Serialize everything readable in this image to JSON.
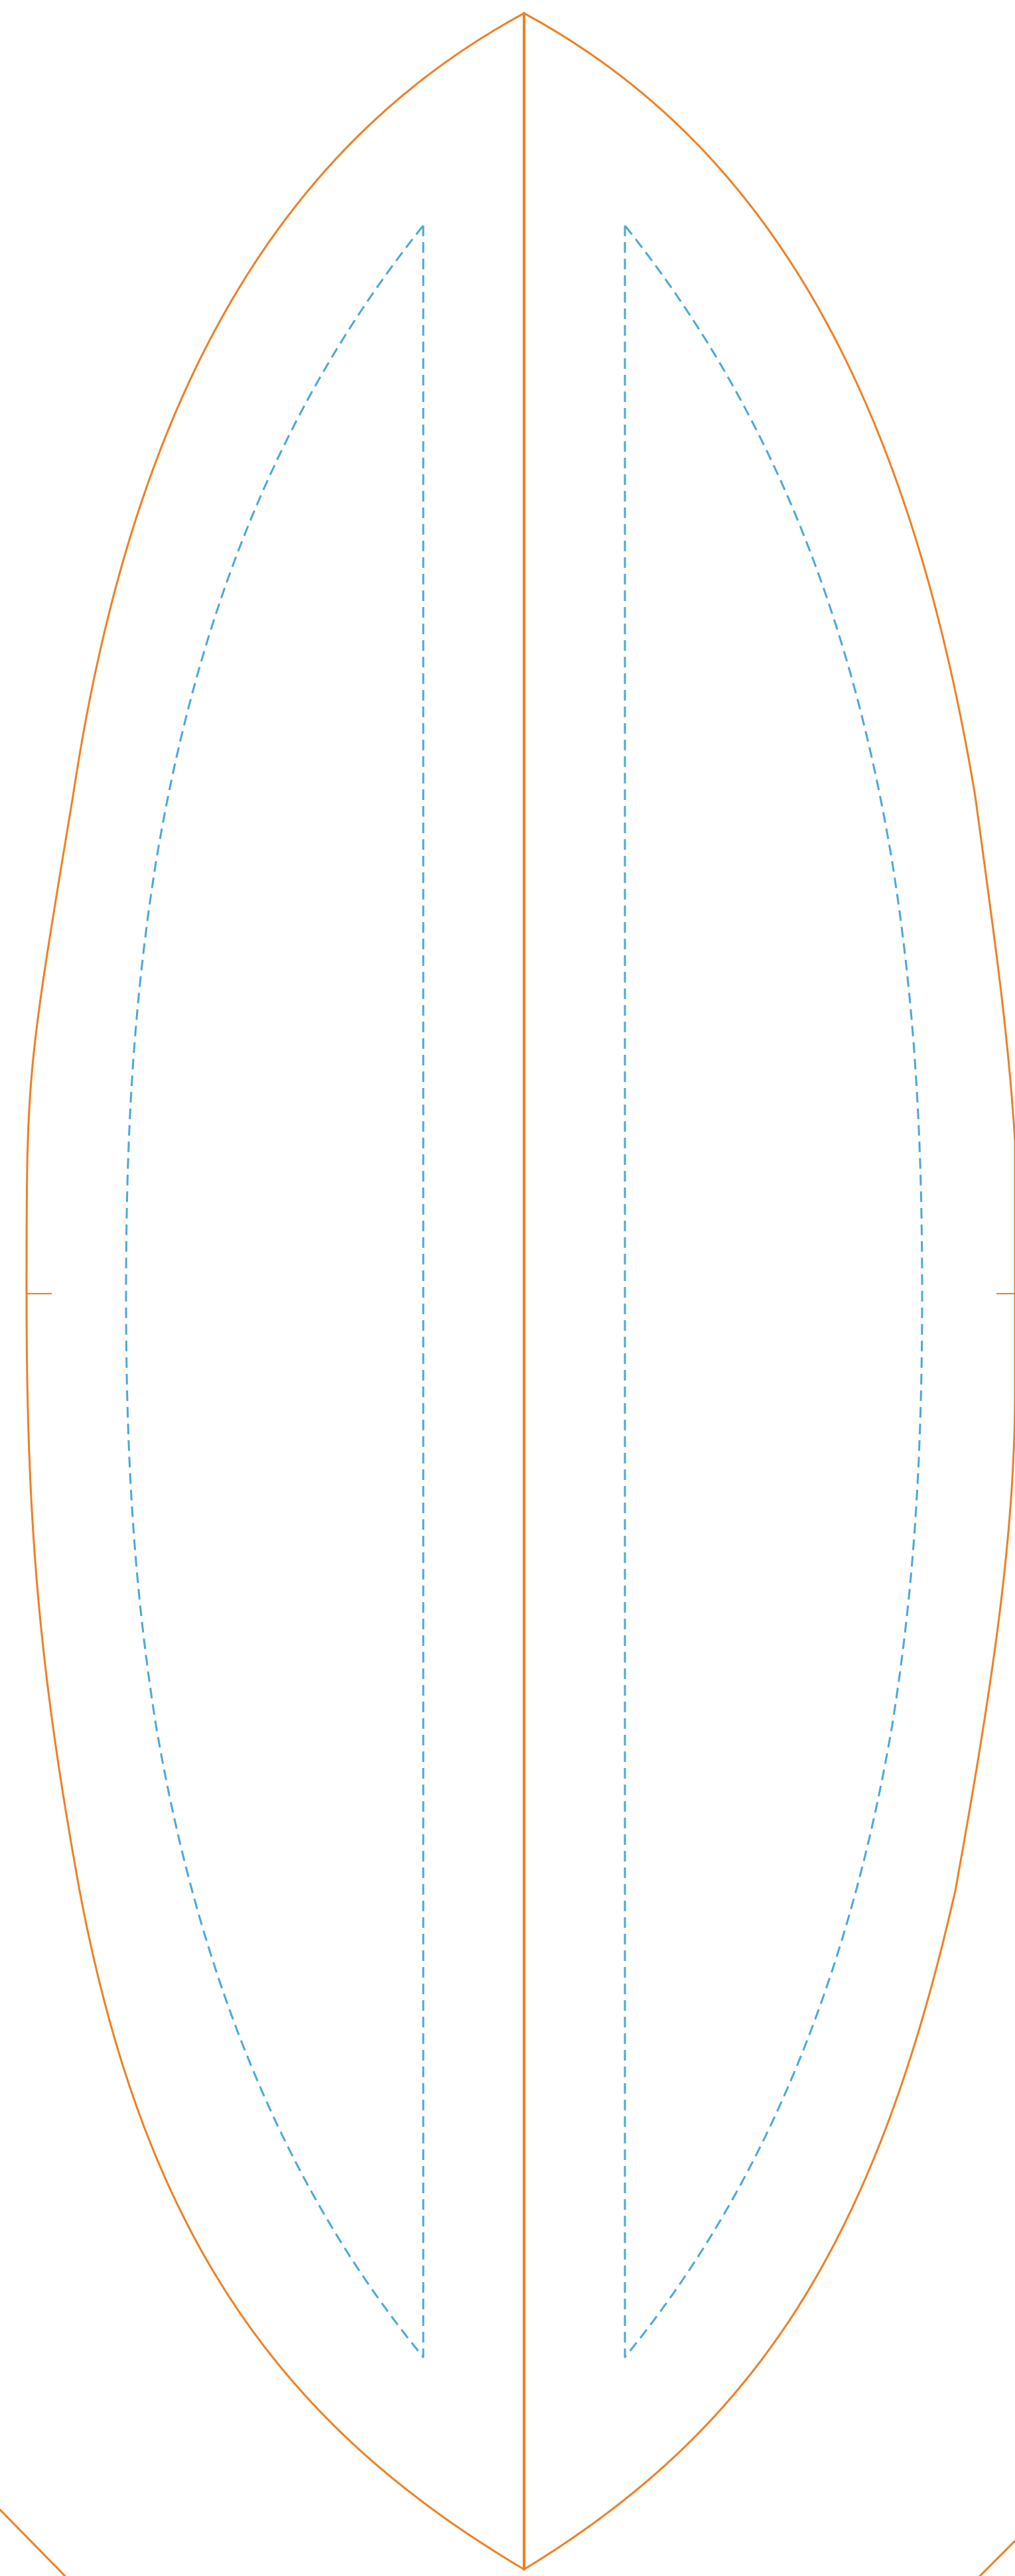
{
  "diagram": {
    "kind": "die-cut template",
    "colors": {
      "background": "#ffffff",
      "cut_line": "#ee8022",
      "fold_line": "#4aa8d8"
    },
    "line_styles": {
      "cut_line": "solid",
      "fold_line": "dashed"
    },
    "shapes": [
      {
        "name": "outer-lens-cut-outline",
        "style": "cut_line"
      },
      {
        "name": "center-cut-line",
        "style": "cut_line"
      },
      {
        "name": "left-inner-fold-panel",
        "style": "fold_line"
      },
      {
        "name": "right-inner-fold-panel",
        "style": "fold_line"
      },
      {
        "name": "left-midline-tick",
        "style": "cut_line"
      },
      {
        "name": "right-midline-tick",
        "style": "cut_line"
      },
      {
        "name": "bottom-left-corner-cut",
        "style": "cut_line"
      },
      {
        "name": "bottom-right-corner-cut",
        "style": "cut_line"
      }
    ]
  }
}
